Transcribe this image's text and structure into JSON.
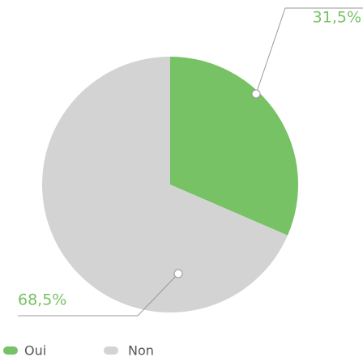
{
  "chart_data": {
    "type": "pie",
    "categories": [
      "Oui",
      "Non"
    ],
    "values": [
      31.5,
      68.5
    ],
    "value_labels": [
      "31,5%",
      "68,5%"
    ],
    "colors": [
      "#76c264",
      "#d3d3d3"
    ]
  }
}
